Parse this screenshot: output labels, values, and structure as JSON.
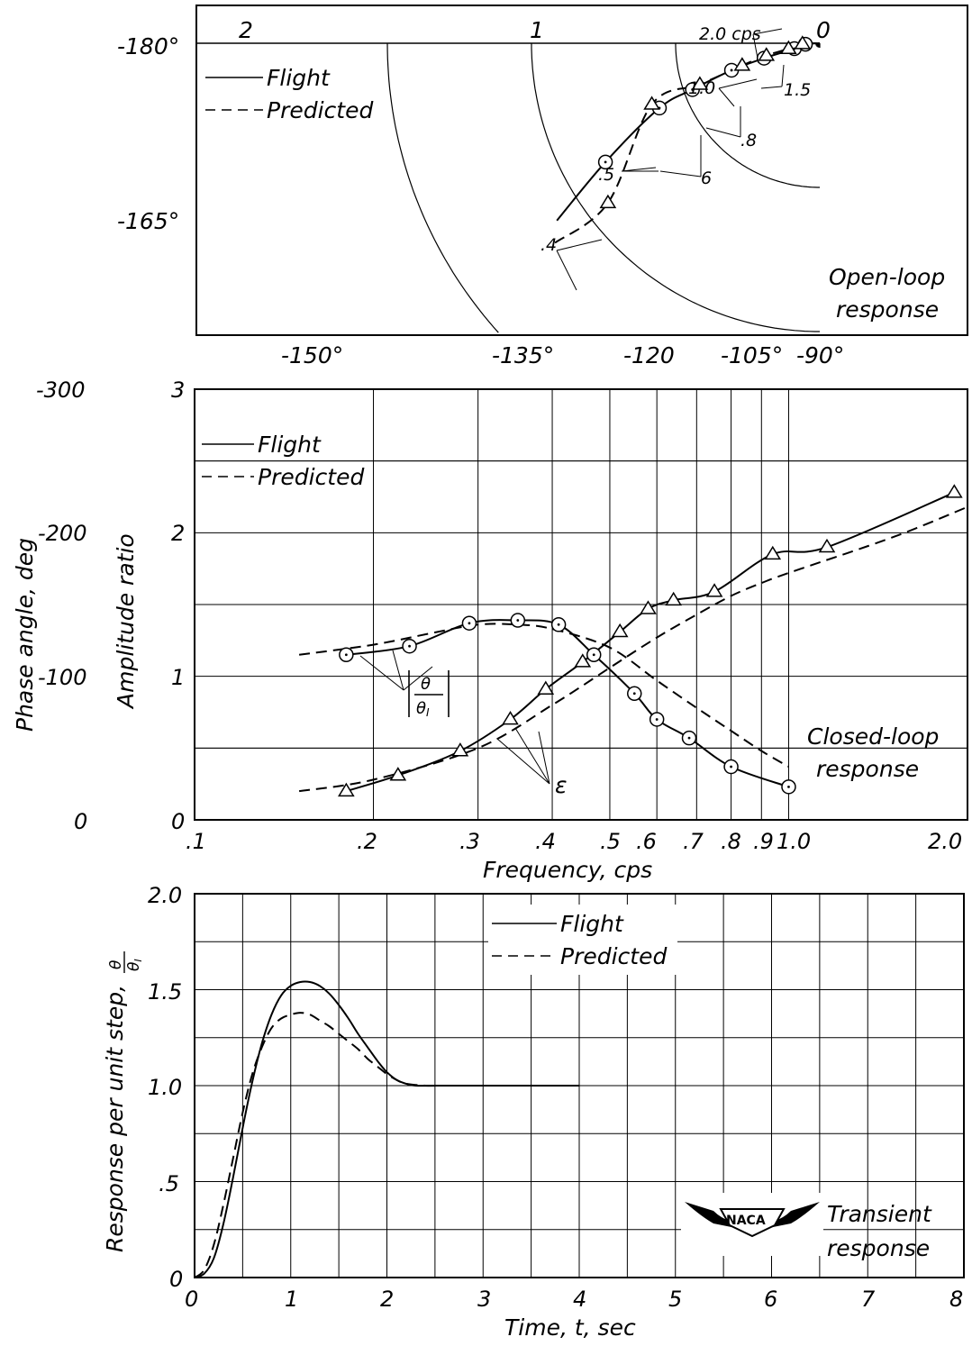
{
  "chart_data": [
    {
      "type": "scatter",
      "subtype": "polar-nyquist",
      "annotation": [
        "Open-loop",
        "response"
      ],
      "legend": [
        "Flight",
        "Predicted"
      ],
      "legend_position": "top-left",
      "magnitude_ring_labels": [
        "2",
        "1",
        "0"
      ],
      "phase_ray_labels": [
        "-180°",
        "-165°",
        "-150°",
        "-135°",
        "-120",
        "-105°",
        "-90°"
      ],
      "frequency_labels": [
        "2.0 cps",
        "1.5",
        "1.0",
        ".8",
        "6",
        ".5",
        ".4"
      ],
      "flight_points": [
        {
          "freq": 0.4,
          "magnitude": 0.85,
          "phase": -151
        },
        {
          "freq": 0.5,
          "magnitude": 0.6,
          "phase": -158
        },
        {
          "freq": 0.6,
          "magnitude": 0.47,
          "phase": -160
        },
        {
          "freq": 0.8,
          "magnitude": 0.32,
          "phase": -163
        },
        {
          "freq": 1.0,
          "magnitude": 0.2,
          "phase": -165
        },
        {
          "freq": 1.5,
          "magnitude": 0.09,
          "phase": -168
        },
        {
          "freq": 2.0,
          "magnitude": 0.05,
          "phase": -176
        }
      ],
      "predicted_points": [
        {
          "freq": 0.4,
          "magnitude": 0.92,
          "phase": -143
        },
        {
          "freq": 0.5,
          "magnitude": 0.62,
          "phase": -160
        },
        {
          "freq": 0.6,
          "magnitude": 0.44,
          "phase": -161
        },
        {
          "freq": 0.8,
          "magnitude": 0.28,
          "phase": -164
        },
        {
          "freq": 1.0,
          "magnitude": 0.19,
          "phase": -167
        },
        {
          "freq": 1.5,
          "magnitude": 0.11,
          "phase": -170
        },
        {
          "freq": 2.0,
          "magnitude": 0.06,
          "phase": -178
        }
      ]
    },
    {
      "type": "line",
      "annotation": [
        "Closed-loop",
        "response"
      ],
      "xlabel": "Frequency, cps",
      "ylabel": "Amplitude ratio",
      "ylabel2": "Phase angle, deg",
      "x_scale": "log",
      "xlim": [
        0.1,
        2.0
      ],
      "ylim": [
        0,
        3
      ],
      "y2lim": [
        0,
        -300
      ],
      "x_ticks": [
        ".1",
        ".2",
        ".3",
        ".4",
        ".5",
        ".6",
        ".7",
        ".8",
        ".9",
        "1.0",
        "2.0"
      ],
      "y_ticks": [
        "0",
        "1",
        "2",
        "3"
      ],
      "y2_ticks": [
        "0",
        "-100",
        "-200",
        "-300"
      ],
      "legend": [
        "Flight",
        "Predicted"
      ],
      "legend_position": "top-left",
      "curve_labels": [
        "θ/θI",
        "ε"
      ],
      "series": [
        {
          "name": "Flight",
          "quantity": "amplitude",
          "x": [
            0.18,
            0.23,
            0.29,
            0.35,
            0.41,
            0.47,
            0.55,
            0.6,
            0.68,
            0.8,
            1.0
          ],
          "y": [
            1.15,
            1.21,
            1.37,
            1.39,
            1.36,
            1.15,
            0.88,
            0.7,
            0.57,
            0.37,
            0.23
          ]
        },
        {
          "name": "Predicted",
          "quantity": "amplitude",
          "x": [
            0.15,
            0.2,
            0.25,
            0.3,
            0.35,
            0.4,
            0.5,
            0.6,
            0.7,
            0.8,
            0.9,
            1.0
          ],
          "y": [
            1.15,
            1.22,
            1.3,
            1.36,
            1.36,
            1.33,
            1.2,
            0.97,
            0.78,
            0.62,
            0.48,
            0.37
          ]
        },
        {
          "name": "Flight",
          "quantity": "phase",
          "x": [
            0.18,
            0.22,
            0.28,
            0.34,
            0.39,
            0.45,
            0.52,
            0.58,
            0.64,
            0.75,
            0.94,
            1.16,
            1.9
          ],
          "y": [
            -20,
            -31,
            -48,
            -70,
            -91,
            -110,
            -131,
            -147,
            -153,
            -159,
            -185,
            -190,
            -228
          ]
        },
        {
          "name": "Predicted",
          "quantity": "phase",
          "x": [
            0.15,
            0.2,
            0.3,
            0.4,
            0.5,
            0.6,
            0.7,
            0.8,
            0.9,
            1.0,
            1.5,
            2.0
          ],
          "y": [
            -20,
            -28,
            -50,
            -80,
            -106,
            -127,
            -143,
            -156,
            -165,
            -172,
            -197,
            -218
          ]
        }
      ]
    },
    {
      "type": "line",
      "annotation": [
        "Transient",
        "response"
      ],
      "xlabel": "Time, t, sec",
      "ylabel": "Response per unit step, θ/θI",
      "xlim": [
        0,
        8
      ],
      "ylim": [
        0,
        2.0
      ],
      "x_ticks": [
        "0",
        "1",
        "2",
        "3",
        "4",
        "5",
        "6",
        "7",
        "8"
      ],
      "y_ticks": [
        "0",
        ".5",
        "1.0",
        "1.5",
        "2.0"
      ],
      "legend": [
        "Flight",
        "Predicted"
      ],
      "legend_position": "top-center",
      "logo": "NACA",
      "series": [
        {
          "name": "Flight",
          "x": [
            0,
            0.1,
            0.2,
            0.3,
            0.4,
            0.5,
            0.6,
            0.7,
            0.8,
            0.9,
            1.0,
            1.1,
            1.2,
            1.3,
            1.4,
            1.5,
            1.6,
            1.7,
            1.8,
            1.9,
            2.0,
            2.1,
            2.2,
            2.3,
            2.5,
            3.0,
            3.5,
            4.0
          ],
          "y": [
            0,
            0.02,
            0.1,
            0.28,
            0.52,
            0.78,
            1.02,
            1.22,
            1.37,
            1.47,
            1.52,
            1.54,
            1.54,
            1.52,
            1.48,
            1.42,
            1.35,
            1.27,
            1.2,
            1.13,
            1.07,
            1.03,
            1.01,
            1.0,
            1.0,
            1.0,
            1.0,
            1.0
          ]
        },
        {
          "name": "Predicted",
          "x": [
            0,
            0.1,
            0.2,
            0.3,
            0.4,
            0.5,
            0.6,
            0.7,
            0.8,
            0.9,
            1.0,
            1.1,
            1.2,
            1.3,
            1.4,
            1.5,
            1.6,
            1.7,
            1.8,
            1.9,
            2.0,
            2.1,
            2.2,
            2.4,
            2.6,
            3.0
          ],
          "y": [
            0,
            0.04,
            0.17,
            0.38,
            0.62,
            0.86,
            1.06,
            1.2,
            1.3,
            1.35,
            1.37,
            1.38,
            1.37,
            1.34,
            1.31,
            1.27,
            1.23,
            1.19,
            1.14,
            1.1,
            1.06,
            1.03,
            1.01,
            1.0,
            1.0,
            1.0
          ]
        }
      ]
    }
  ]
}
